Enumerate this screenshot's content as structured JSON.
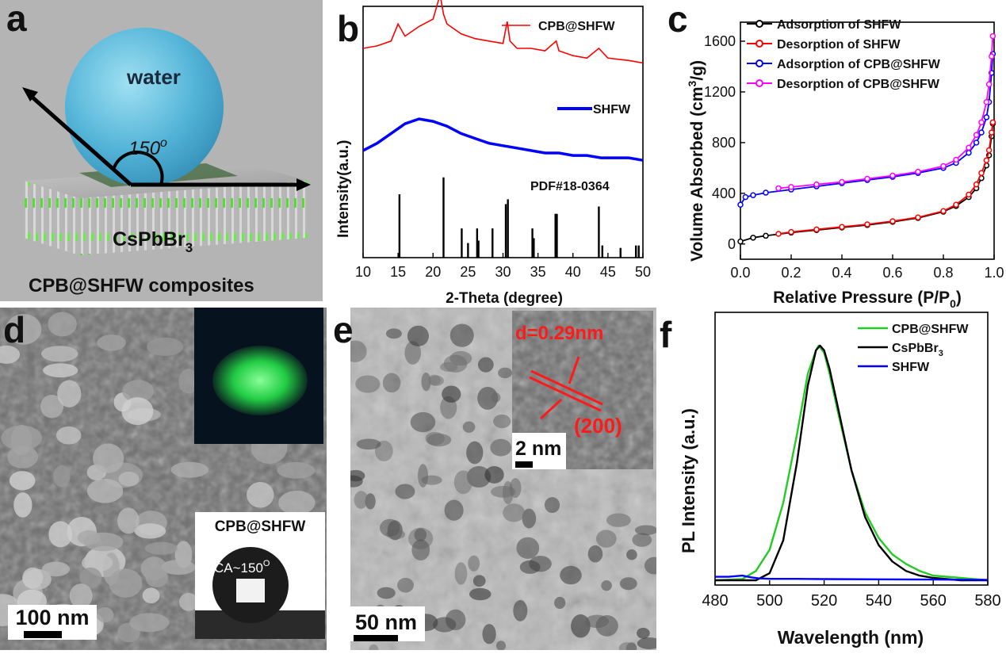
{
  "panels": {
    "a": {
      "label": "a",
      "water_label": "water",
      "angle_label": "150o",
      "material_label": "CsPbBr3",
      "caption": "CPB@SHFW composites"
    },
    "b": {
      "label": "b",
      "legend_top": "CPB@SHFW",
      "legend_mid": "SHFW",
      "reference_label": "PDF#18-0364"
    },
    "c": {
      "label": "c"
    },
    "d": {
      "label": "d",
      "scale_bar": "100 nm",
      "inset_title": "CPB@SHFW",
      "contact_angle": "CA~150o"
    },
    "e": {
      "label": "e",
      "scale_bar": "50 nm",
      "inset_scale": "2 nm",
      "d_spacing": "d=0.29nm",
      "plane": "(200)"
    },
    "f": {
      "label": "f"
    }
  },
  "chart_data": [
    {
      "panel": "b",
      "type": "line",
      "xlabel": "2-Theta (degree)",
      "ylabel": "Intensity(a.u.)",
      "xlim": [
        10,
        50
      ],
      "xticks": [
        10,
        15,
        20,
        25,
        30,
        35,
        40,
        45,
        50
      ],
      "series": [
        {
          "name": "CPB@SHFW",
          "color": "#ff0000",
          "x": [
            10,
            12,
            14,
            15,
            16,
            18,
            20,
            21,
            21.5,
            22,
            24,
            26,
            28,
            30,
            30.6,
            31,
            32,
            34,
            36,
            37.6,
            38,
            40,
            42,
            43.7,
            45,
            48,
            50
          ],
          "y": [
            0.86,
            0.87,
            0.89,
            0.96,
            0.91,
            0.95,
            0.98,
            1.08,
            1.0,
            0.96,
            0.92,
            0.9,
            0.89,
            0.88,
            0.97,
            0.89,
            0.86,
            0.86,
            0.85,
            0.89,
            0.85,
            0.83,
            0.82,
            0.86,
            0.82,
            0.81,
            0.8
          ]
        },
        {
          "name": "SHFW",
          "color": "#0000ff",
          "x": [
            10,
            12,
            14,
            16,
            18,
            20,
            22,
            24,
            26,
            28,
            30,
            32,
            34,
            36,
            38,
            40,
            42,
            44,
            46,
            48,
            50
          ],
          "y": [
            0.44,
            0.47,
            0.51,
            0.55,
            0.57,
            0.56,
            0.54,
            0.51,
            0.49,
            0.47,
            0.46,
            0.45,
            0.44,
            0.43,
            0.43,
            0.42,
            0.42,
            0.41,
            0.41,
            0.41,
            0.4
          ]
        },
        {
          "name": "PDF#18-0364",
          "type": "stick",
          "color": "#000000",
          "x": [
            15.2,
            21.5,
            24.1,
            25.0,
            26.3,
            26.5,
            28.5,
            30.4,
            30.7,
            34.2,
            34.4,
            37.5,
            37.7,
            43.7,
            44.2,
            46.8,
            49.0,
            49.4
          ],
          "y": [
            0.26,
            0.33,
            0.12,
            0.06,
            0.12,
            0.07,
            0.12,
            0.22,
            0.24,
            0.12,
            0.08,
            0.18,
            0.18,
            0.21,
            0.05,
            0.04,
            0.05,
            0.05
          ]
        }
      ]
    },
    {
      "panel": "c",
      "type": "line",
      "xlabel": "Relative Pressure (P/P0)",
      "ylabel": "Volume Absorbed (cm3/g)",
      "xlim": [
        0,
        1
      ],
      "ylim": [
        -120,
        1750
      ],
      "xticks": [
        0.0,
        0.2,
        0.4,
        0.6,
        0.8,
        1.0
      ],
      "yticks": [
        0,
        400,
        800,
        1200,
        1600
      ],
      "series": [
        {
          "name": "Adsorption of SHFW",
          "color": "#000000",
          "x": [
            0.0,
            0.05,
            0.1,
            0.2,
            0.3,
            0.4,
            0.5,
            0.6,
            0.7,
            0.8,
            0.85,
            0.9,
            0.93,
            0.95,
            0.97,
            0.98,
            0.99,
            0.995
          ],
          "y": [
            20,
            50,
            65,
            90,
            110,
            130,
            150,
            175,
            205,
            255,
            300,
            370,
            440,
            520,
            620,
            700,
            850,
            950
          ]
        },
        {
          "name": "Desorption of SHFW",
          "color": "#ff0000",
          "x": [
            0.15,
            0.2,
            0.3,
            0.4,
            0.5,
            0.6,
            0.7,
            0.8,
            0.85,
            0.9,
            0.93,
            0.95,
            0.97,
            0.98,
            0.99,
            0.995
          ],
          "y": [
            80,
            95,
            115,
            135,
            155,
            180,
            210,
            260,
            310,
            390,
            470,
            560,
            660,
            740,
            880,
            960
          ]
        },
        {
          "name": "Adsorption of CPB@SHFW",
          "color": "#0000ff",
          "x": [
            0.0,
            0.02,
            0.05,
            0.1,
            0.2,
            0.3,
            0.4,
            0.5,
            0.6,
            0.7,
            0.8,
            0.85,
            0.9,
            0.93,
            0.95,
            0.97,
            0.98,
            0.99,
            0.995
          ],
          "y": [
            310,
            370,
            385,
            405,
            430,
            455,
            480,
            505,
            530,
            560,
            600,
            640,
            720,
            800,
            880,
            1000,
            1120,
            1350,
            1500
          ]
        },
        {
          "name": "Desorption of CPB@SHFW",
          "color": "#ff00ff",
          "x": [
            0.15,
            0.2,
            0.3,
            0.4,
            0.5,
            0.6,
            0.7,
            0.8,
            0.85,
            0.9,
            0.93,
            0.95,
            0.97,
            0.98,
            0.99,
            0.995
          ],
          "y": [
            440,
            450,
            470,
            490,
            515,
            540,
            570,
            615,
            665,
            760,
            860,
            960,
            1120,
            1260,
            1480,
            1640
          ]
        }
      ]
    },
    {
      "panel": "f",
      "type": "line",
      "xlabel": "Wavelength (nm)",
      "ylabel": "PL Intensity (a.u.)",
      "xlim": [
        480,
        580
      ],
      "xticks": [
        480,
        500,
        520,
        540,
        560,
        580
      ],
      "series": [
        {
          "name": "CPB@SHFW",
          "color": "#22cc22",
          "x": [
            480,
            490,
            495,
            500,
            505,
            510,
            514,
            517,
            518,
            520,
            522,
            525,
            530,
            535,
            540,
            545,
            550,
            555,
            560,
            570,
            580
          ],
          "y": [
            0.0,
            0.005,
            0.04,
            0.13,
            0.33,
            0.62,
            0.88,
            0.98,
            1.0,
            0.97,
            0.88,
            0.72,
            0.47,
            0.29,
            0.18,
            0.11,
            0.07,
            0.04,
            0.02,
            0.01,
            0.0
          ]
        },
        {
          "name": "CsPbBr3",
          "color": "#000000",
          "x": [
            480,
            495,
            500,
            505,
            510,
            514,
            517,
            518.5,
            520,
            522,
            525,
            530,
            535,
            540,
            545,
            550,
            555,
            560,
            570,
            580
          ],
          "y": [
            0.0,
            0.0,
            0.03,
            0.17,
            0.5,
            0.83,
            0.98,
            1.0,
            0.98,
            0.9,
            0.74,
            0.47,
            0.27,
            0.15,
            0.08,
            0.04,
            0.02,
            0.01,
            0.0,
            0.0
          ]
        },
        {
          "name": "SHFW",
          "color": "#0000ff",
          "x": [
            480,
            485,
            490,
            493,
            496,
            500,
            510,
            520,
            540,
            560,
            580
          ],
          "y": [
            0.015,
            0.015,
            0.02,
            0.013,
            0.008,
            0.006,
            0.006,
            0.005,
            0.004,
            0.003,
            0.002
          ]
        }
      ]
    }
  ]
}
